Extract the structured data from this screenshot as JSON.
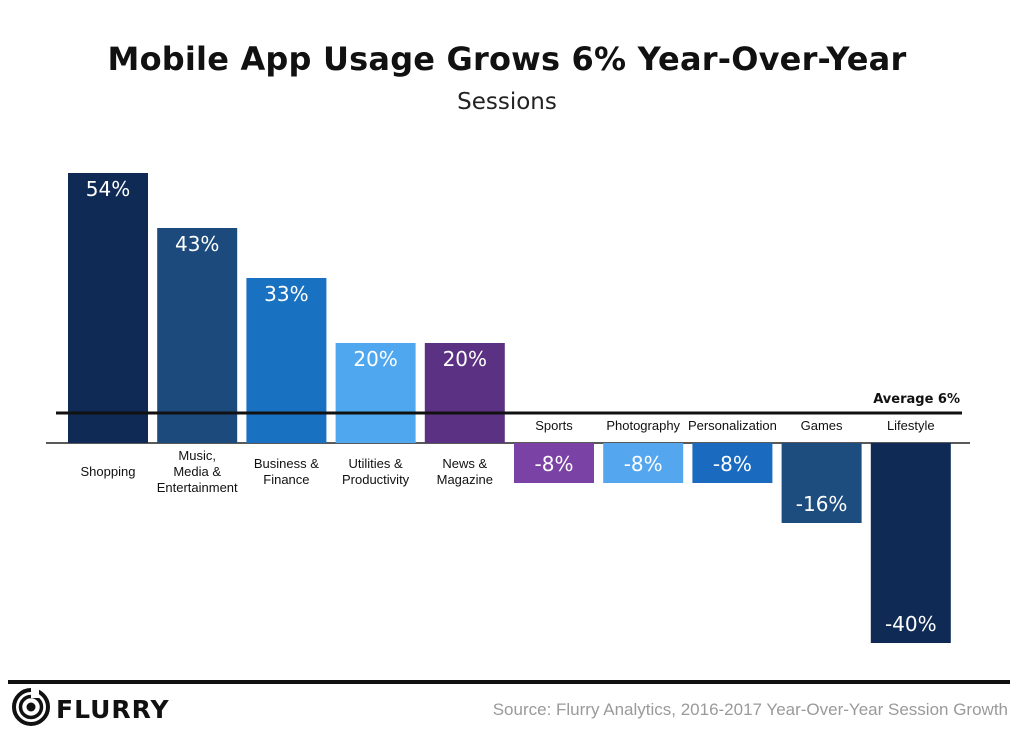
{
  "header": {
    "title": "Mobile App Usage Grows 6% Year-Over-Year",
    "subtitle": "Sessions"
  },
  "chart_data": {
    "type": "bar",
    "title": "Mobile App Usage Grows 6% Year-Over-Year",
    "subtitle": "Sessions",
    "categories": [
      [
        "Shopping"
      ],
      [
        "Music,",
        "Media &",
        "Entertainment"
      ],
      [
        "Business &",
        "Finance"
      ],
      [
        "Utilities &",
        "Productivity"
      ],
      [
        "News &",
        "Magazine"
      ],
      [
        "Sports"
      ],
      [
        "Photography"
      ],
      [
        "Personalization"
      ],
      [
        "Games"
      ],
      [
        "Lifestyle"
      ]
    ],
    "values": [
      54,
      43,
      33,
      20,
      20,
      -8,
      -8,
      -8,
      -16,
      -40
    ],
    "value_labels": [
      "54%",
      "43%",
      "33%",
      "20%",
      "20%",
      "-8%",
      "-8%",
      "-8%",
      "-16%",
      "-40%"
    ],
    "bar_colors": [
      "#0f2a55",
      "#1c4a7d",
      "#1971c2",
      "#4ea7ef",
      "#5b3283",
      "#7b42a6",
      "#54a7ee",
      "#1a6bbf",
      "#1d4c7e",
      "#0f2a55"
    ],
    "average": 6,
    "average_label": "Average 6%",
    "ylim": [
      -40,
      54
    ],
    "xlabel": "",
    "ylabel": ""
  },
  "footer": {
    "brand": "FLURRY",
    "logo_icon": "flurry-swirl-icon",
    "source": "Source: Flurry Analytics, 2016-2017 Year-Over-Year Session Growth"
  }
}
